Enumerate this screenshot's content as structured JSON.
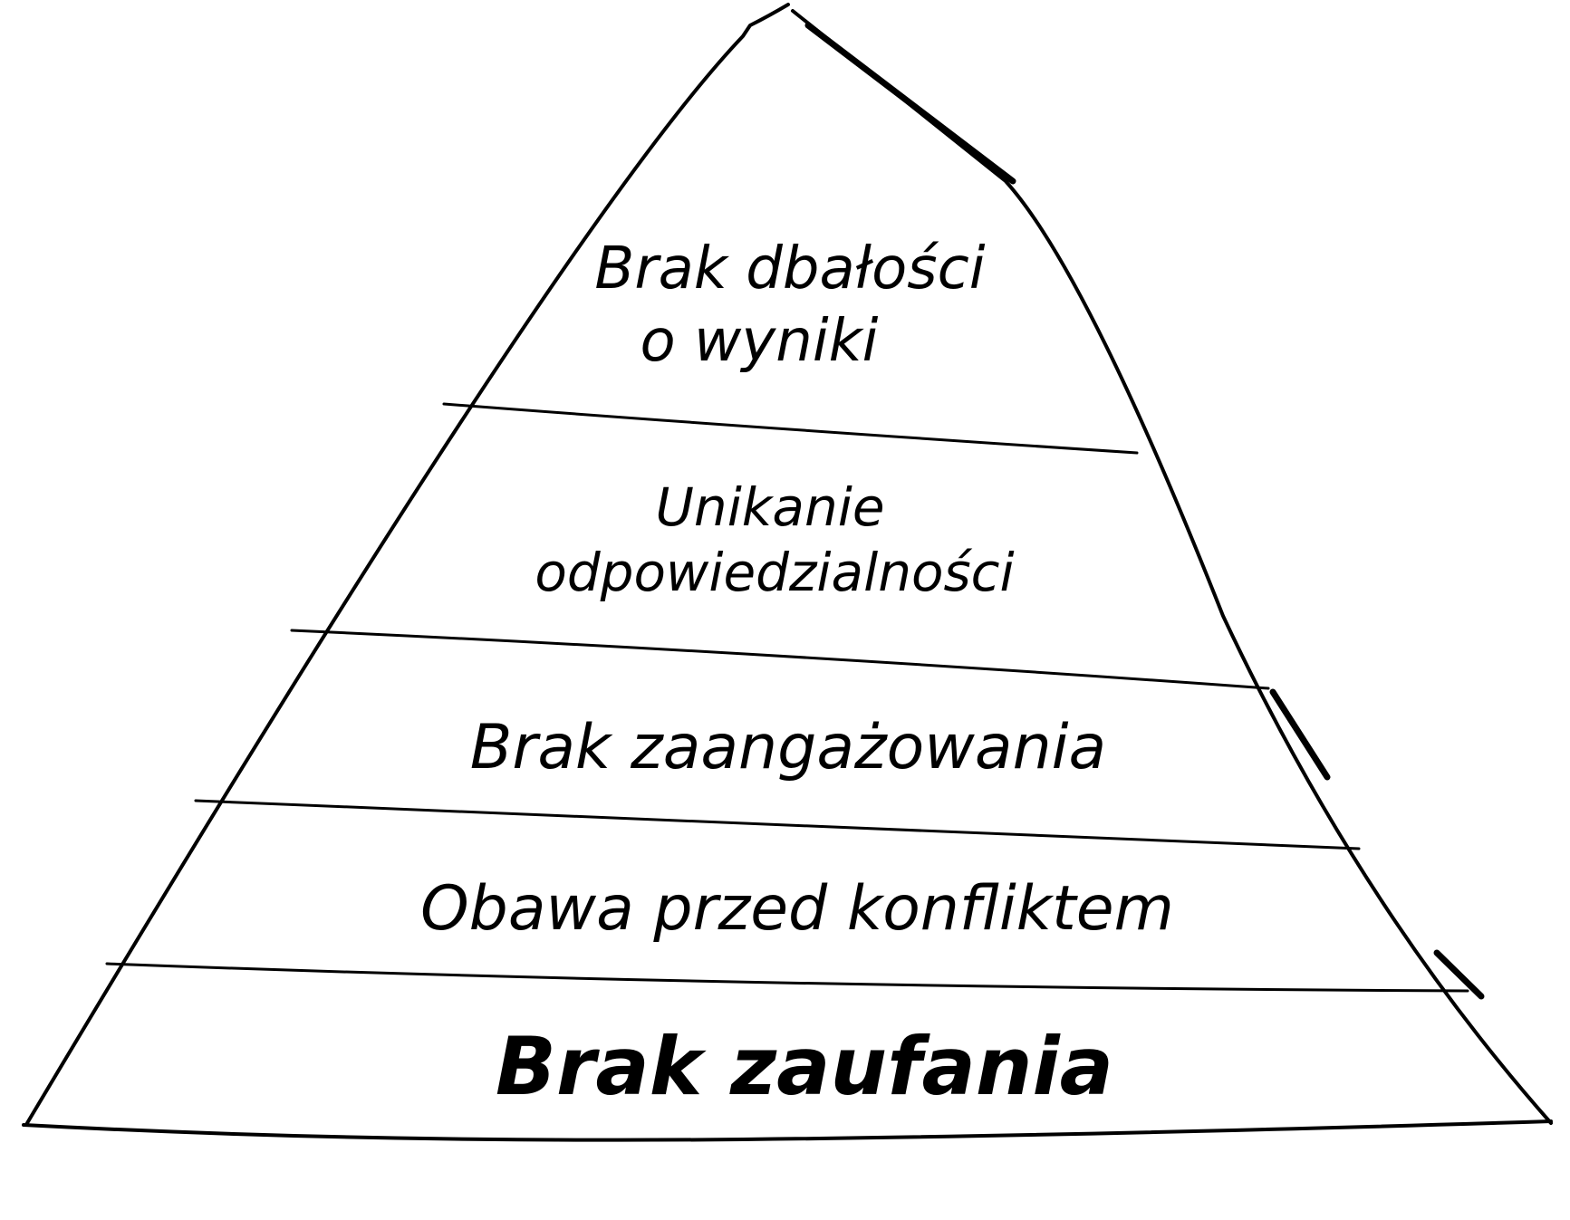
{
  "levels": [
    {
      "id": "level-5",
      "lines": [
        "Brak dbałości",
        "o wyniki"
      ]
    },
    {
      "id": "level-4",
      "lines": [
        "Unikanie",
        "odpowiedzialności"
      ]
    },
    {
      "id": "level-3",
      "lines": [
        "Brak zaangażowania"
      ]
    },
    {
      "id": "level-2",
      "lines": [
        "Obawa przed konfliktem"
      ]
    },
    {
      "id": "level-1",
      "lines": [
        "Brak zaufania"
      ]
    }
  ]
}
